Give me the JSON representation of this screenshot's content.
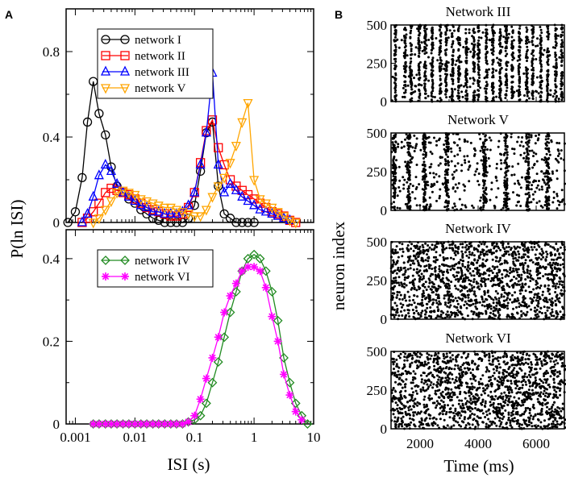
{
  "panels": {
    "a": "A",
    "b": "B"
  },
  "chart_data": [
    {
      "id": "isi-top",
      "type": "line",
      "x_scale": "log",
      "xlim": [
        0.0007,
        10
      ],
      "ylim": [
        0,
        1.0
      ],
      "y_ticks": [
        0,
        0.4,
        0.8
      ],
      "y_tick_labels": [
        "0",
        "0.4",
        "0.8"
      ],
      "xlabel": "ISI (s)",
      "ylabel": "P(ln ISI)",
      "legend_position": "top-center",
      "series": [
        {
          "name": "network I",
          "color": "#000000",
          "marker": "circle",
          "x": [
            0.00075,
            0.001,
            0.0013,
            0.0016,
            0.002,
            0.0025,
            0.0032,
            0.004,
            0.005,
            0.0063,
            0.0079,
            0.01,
            0.0126,
            0.0158,
            0.02,
            0.025,
            0.0316,
            0.04,
            0.05,
            0.063,
            0.079,
            0.1,
            0.126,
            0.158,
            0.2,
            0.251,
            0.316,
            0.398,
            0.5,
            0.63,
            0.79,
            1.0
          ],
          "y": [
            0.0,
            0.05,
            0.21,
            0.47,
            0.66,
            0.51,
            0.41,
            0.26,
            0.17,
            0.14,
            0.11,
            0.09,
            0.06,
            0.04,
            0.02,
            0.01,
            0.0,
            0.0,
            0.0,
            0.0,
            0.02,
            0.08,
            0.24,
            0.42,
            0.47,
            0.17,
            0.04,
            0.02,
            0.0,
            0.0,
            0.0,
            0.0
          ]
        },
        {
          "name": "network II",
          "color": "#ff0000",
          "marker": "square",
          "x": [
            0.0013,
            0.0016,
            0.002,
            0.0025,
            0.0032,
            0.004,
            0.005,
            0.0063,
            0.0079,
            0.01,
            0.0126,
            0.0158,
            0.02,
            0.025,
            0.0316,
            0.04,
            0.05,
            0.063,
            0.079,
            0.1,
            0.126,
            0.158,
            0.2,
            0.251,
            0.316,
            0.398,
            0.5,
            0.63,
            0.79,
            1.0,
            1.26,
            1.58,
            2.0,
            2.51,
            3.16,
            3.98,
            5.0
          ],
          "y": [
            0.0,
            0.02,
            0.05,
            0.09,
            0.14,
            0.16,
            0.15,
            0.14,
            0.13,
            0.11,
            0.09,
            0.07,
            0.06,
            0.05,
            0.04,
            0.03,
            0.03,
            0.04,
            0.07,
            0.14,
            0.28,
            0.43,
            0.48,
            0.35,
            0.27,
            0.2,
            0.17,
            0.15,
            0.13,
            0.11,
            0.09,
            0.07,
            0.05,
            0.04,
            0.03,
            0.01,
            0.0
          ]
        },
        {
          "name": "network III",
          "color": "#0000ff",
          "marker": "triangle-up",
          "x": [
            0.0013,
            0.0016,
            0.002,
            0.0025,
            0.0032,
            0.004,
            0.005,
            0.0063,
            0.0079,
            0.01,
            0.0126,
            0.0158,
            0.02,
            0.025,
            0.0316,
            0.04,
            0.05,
            0.063,
            0.079,
            0.1,
            0.126,
            0.158,
            0.2,
            0.251,
            0.316,
            0.398,
            0.5,
            0.63,
            0.79,
            1.0,
            1.26,
            1.58,
            2.0,
            2.51,
            3.16,
            3.98
          ],
          "y": [
            0.0,
            0.04,
            0.12,
            0.22,
            0.27,
            0.24,
            0.18,
            0.14,
            0.12,
            0.1,
            0.08,
            0.07,
            0.05,
            0.05,
            0.04,
            0.04,
            0.04,
            0.05,
            0.08,
            0.14,
            0.27,
            0.42,
            0.7,
            0.27,
            0.14,
            0.18,
            0.15,
            0.12,
            0.1,
            0.08,
            0.06,
            0.05,
            0.04,
            0.03,
            0.02,
            0.01
          ]
        },
        {
          "name": "network V",
          "color": "#ffa500",
          "marker": "triangle-down",
          "x": [
            0.002,
            0.0025,
            0.0032,
            0.004,
            0.005,
            0.0063,
            0.0079,
            0.01,
            0.0126,
            0.0158,
            0.02,
            0.025,
            0.0316,
            0.04,
            0.05,
            0.063,
            0.079,
            0.1,
            0.126,
            0.158,
            0.2,
            0.251,
            0.316,
            0.398,
            0.5,
            0.63,
            0.79,
            1.0,
            1.26,
            1.58,
            2.0,
            2.51,
            3.16,
            3.98,
            5.0
          ],
          "y": [
            0.0,
            0.02,
            0.06,
            0.1,
            0.14,
            0.15,
            0.14,
            0.13,
            0.11,
            0.1,
            0.09,
            0.08,
            0.07,
            0.07,
            0.06,
            0.05,
            0.04,
            0.03,
            0.03,
            0.06,
            0.12,
            0.17,
            0.21,
            0.28,
            0.36,
            0.47,
            0.56,
            0.2,
            0.11,
            0.09,
            0.07,
            0.05,
            0.03,
            0.01,
            0.0
          ]
        }
      ]
    },
    {
      "id": "isi-bottom",
      "type": "line",
      "x_scale": "log",
      "xlim": [
        0.0007,
        10
      ],
      "ylim": [
        0,
        0.47
      ],
      "x_ticks": [
        0.001,
        0.01,
        0.1,
        1,
        10
      ],
      "x_tick_labels": [
        "0.001",
        "0.01",
        "0.1",
        "1",
        "10"
      ],
      "y_ticks": [
        0,
        0.2,
        0.4
      ],
      "y_tick_labels": [
        "0",
        "0.2",
        "0.4"
      ],
      "xlabel": "ISI (s)",
      "ylabel": "P(ln ISI)",
      "legend_position": "top-center",
      "series": [
        {
          "name": "network IV",
          "color": "#228b22",
          "marker": "diamond",
          "x": [
            0.002,
            0.0025,
            0.0032,
            0.004,
            0.005,
            0.0063,
            0.0079,
            0.01,
            0.0126,
            0.0158,
            0.02,
            0.025,
            0.0316,
            0.04,
            0.05,
            0.063,
            0.079,
            0.1,
            0.126,
            0.158,
            0.2,
            0.251,
            0.316,
            0.398,
            0.5,
            0.63,
            0.79,
            1.0,
            1.26,
            1.58,
            2.0,
            2.51,
            3.16,
            3.98,
            5.0,
            6.3,
            7.9
          ],
          "y": [
            0.0,
            0.0,
            0.0,
            0.0,
            0.0,
            0.0,
            0.0,
            0.0,
            0.0,
            0.0,
            0.0,
            0.0,
            0.0,
            0.0,
            0.0,
            0.0,
            0.005,
            0.01,
            0.02,
            0.05,
            0.1,
            0.15,
            0.21,
            0.27,
            0.32,
            0.37,
            0.4,
            0.41,
            0.4,
            0.37,
            0.32,
            0.25,
            0.16,
            0.1,
            0.05,
            0.02,
            0.0
          ]
        },
        {
          "name": "network VI",
          "color": "#ff00ff",
          "marker": "asterisk",
          "x": [
            0.002,
            0.0025,
            0.0032,
            0.004,
            0.005,
            0.0063,
            0.0079,
            0.01,
            0.0126,
            0.0158,
            0.02,
            0.025,
            0.0316,
            0.04,
            0.05,
            0.063,
            0.079,
            0.1,
            0.126,
            0.158,
            0.2,
            0.251,
            0.316,
            0.398,
            0.5,
            0.63,
            0.79,
            1.0,
            1.26,
            1.58,
            2.0,
            2.51,
            3.16,
            3.98,
            5.0,
            6.3
          ],
          "y": [
            0.0,
            0.0,
            0.0,
            0.0,
            0.0,
            0.0,
            0.0,
            0.0,
            0.0,
            0.0,
            0.0,
            0.0,
            0.0,
            0.0,
            0.0,
            0.0,
            0.005,
            0.02,
            0.06,
            0.11,
            0.16,
            0.21,
            0.27,
            0.31,
            0.34,
            0.37,
            0.38,
            0.38,
            0.37,
            0.33,
            0.26,
            0.2,
            0.12,
            0.07,
            0.03,
            0.01
          ]
        }
      ]
    },
    {
      "id": "raster-network-iii",
      "type": "scatter",
      "title": "Network III",
      "xlim": [
        1000,
        7000
      ],
      "ylim": [
        0,
        500
      ],
      "y_ticks": [
        0,
        250,
        500
      ],
      "y_tick_labels": [
        "0",
        "250",
        "500"
      ],
      "pattern": "synchronous bursts",
      "burst_times_ms": [
        1150,
        1480,
        1690,
        1970,
        2180,
        2420,
        2700,
        2900,
        3120,
        3340,
        3600,
        3860,
        4020,
        4290,
        4510,
        4760,
        4970,
        5180,
        5420,
        5680,
        5880,
        6160,
        6400,
        6680,
        6880
      ],
      "dots": 1400
    },
    {
      "id": "raster-network-v",
      "type": "scatter",
      "title": "Network V",
      "xlim": [
        1000,
        7000
      ],
      "ylim": [
        0,
        500
      ],
      "y_ticks": [
        0,
        250,
        500
      ],
      "y_tick_labels": [
        "0",
        "250",
        "500"
      ],
      "pattern": "population bursts",
      "burst_times_ms": [
        1110,
        1610,
        2150,
        2930,
        4230,
        4950,
        5710,
        6390
      ],
      "dots": 1000
    },
    {
      "id": "raster-network-iv",
      "type": "scatter",
      "title": "Network IV",
      "xlim": [
        1000,
        7000
      ],
      "ylim": [
        0,
        500
      ],
      "y_ticks": [
        0,
        250,
        500
      ],
      "y_tick_labels": [
        "0",
        "250",
        "500"
      ],
      "ylabel": "neuron index",
      "pattern": "asynchronous",
      "dots": 1500
    },
    {
      "id": "raster-network-vi",
      "type": "scatter",
      "title": "Network VI",
      "xlim": [
        1000,
        7000
      ],
      "ylim": [
        0,
        500
      ],
      "x_ticks": [
        2000,
        4000,
        6000
      ],
      "x_tick_labels": [
        "2000",
        "4000",
        "6000"
      ],
      "y_ticks": [
        0,
        250,
        500
      ],
      "y_tick_labels": [
        "0",
        "250",
        "500"
      ],
      "xlabel": "Time (ms)",
      "pattern": "asynchronous",
      "dots": 1500
    }
  ]
}
